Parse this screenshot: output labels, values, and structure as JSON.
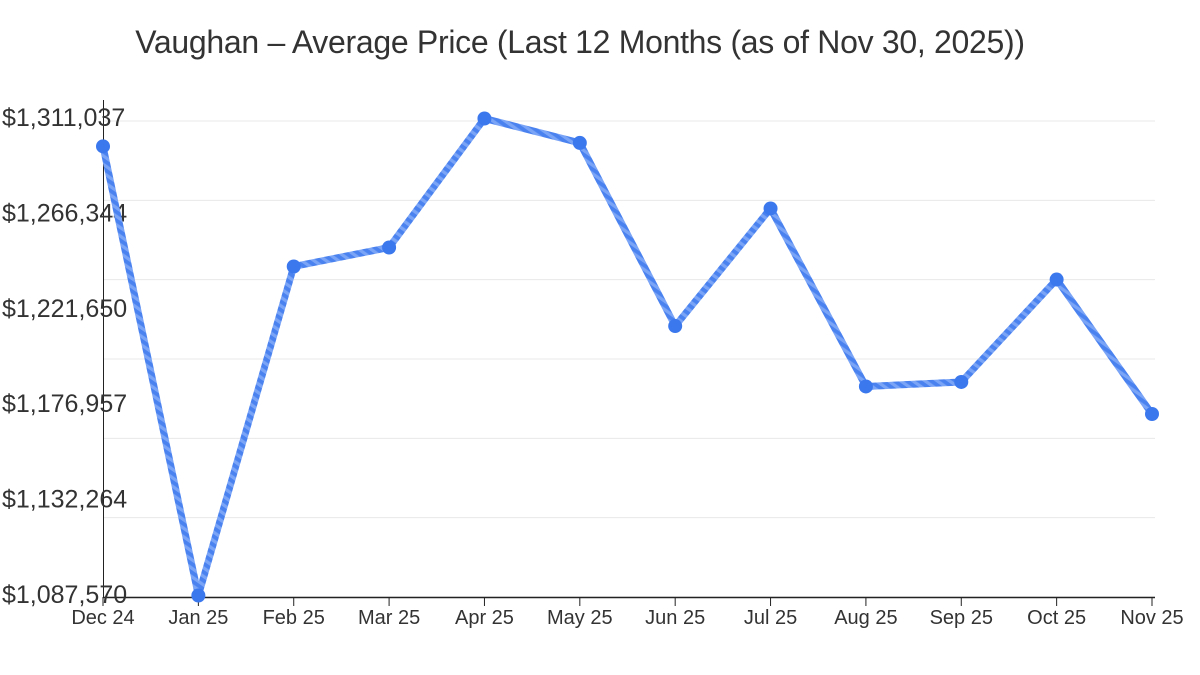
{
  "chart_data": {
    "type": "line",
    "title": "Vaughan – Average Price (Last 12 Months (as of Nov 30, 2025))",
    "series_name": "Average Price",
    "categories": [
      "Dec 24",
      "Jan 25",
      "Feb 25",
      "Mar 25",
      "Apr 25",
      "May 25",
      "Jun 25",
      "Jul 25",
      "Aug 25",
      "Sep 25",
      "Oct 25",
      "Nov 25"
    ],
    "values": [
      1298000,
      1087570,
      1241700,
      1250600,
      1311037,
      1299600,
      1213800,
      1268900,
      1185500,
      1187600,
      1235600,
      1172600
    ],
    "y_tick_labels": [
      "$1,311,037",
      "$1,266,344",
      "$1,221,650",
      "$1,176,957",
      "$1,132,264",
      "$1,087,570"
    ],
    "y_tick_values": [
      1311037,
      1266344,
      1221650,
      1176957,
      1132264,
      1087570
    ],
    "ylim": [
      1087570,
      1311037
    ],
    "xlabel": "",
    "ylabel": "",
    "grid": true,
    "legend": false,
    "colors": {
      "line": "#4a82f0",
      "line_stripe_light": "#7aa4f6",
      "point": "#3b78ee",
      "grid": "#e8e8e8",
      "axis": "#222222",
      "text": "#333333",
      "background": "#ffffff"
    }
  }
}
